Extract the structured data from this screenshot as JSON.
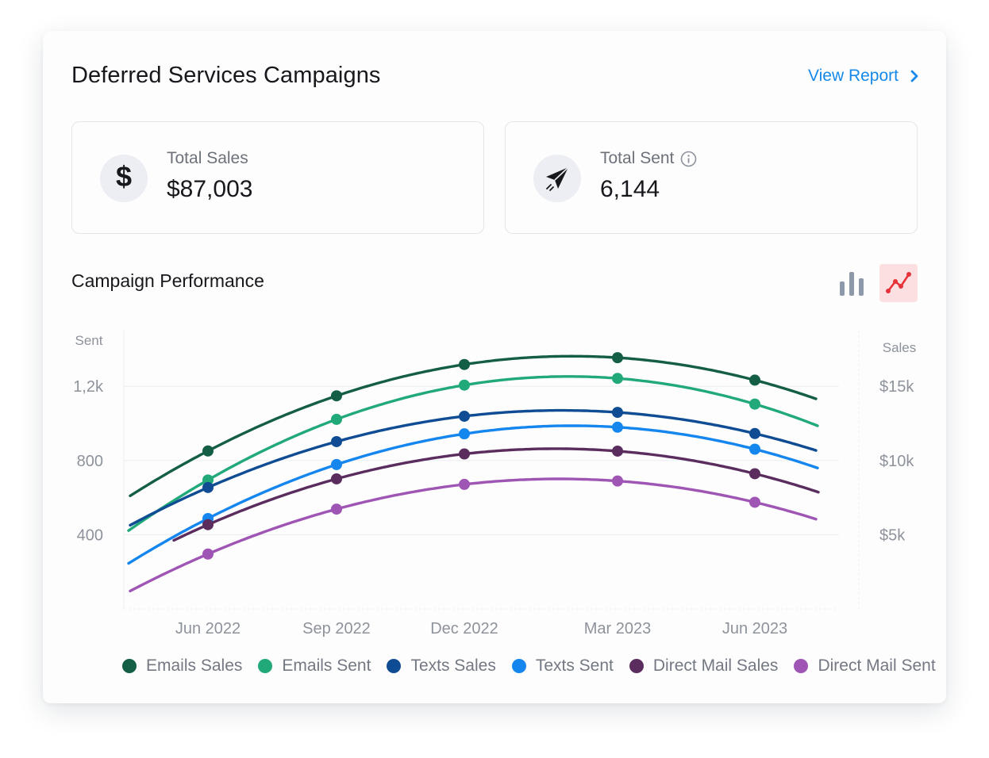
{
  "header": {
    "title": "Deferred Services Campaigns",
    "link": "View Report"
  },
  "stats": [
    {
      "label": "Total Sales",
      "value": "$87,003",
      "icon": "dollar-icon"
    },
    {
      "label": "Total Sent",
      "value": "6,144",
      "icon": "paper-plane-icon",
      "info_icon": "info-icon"
    }
  ],
  "section": {
    "title": "Campaign Performance"
  },
  "toggle": {
    "bar_icon": "bar-chart-icon",
    "line_icon": "line-chart-icon",
    "active": "line",
    "active_color": "#e8323a"
  },
  "chart_data": {
    "type": "line",
    "x_ticks": [
      "Jun 2022",
      "Sep 2022",
      "Dec 2022",
      "Mar 2023",
      "Jun 2023"
    ],
    "y_left": {
      "label": "Sent",
      "ticks": [
        "400",
        "800",
        "1,2k"
      ],
      "range": [
        0,
        1500
      ]
    },
    "y_right": {
      "label": "Sales",
      "ticks": [
        "$5k",
        "$10k",
        "$15k"
      ],
      "range": [
        0,
        18750
      ]
    },
    "grid": true,
    "legend_position": "bottom",
    "series": [
      {
        "name": "Emails Sales",
        "color": "#155e46",
        "values": [
          845,
          1160,
          1320,
          1340,
          1240
        ]
      },
      {
        "name": "Emails Sent",
        "color": "#22a979",
        "values": [
          690,
          1030,
          1210,
          1230,
          1110
        ]
      },
      {
        "name": "Texts Sales",
        "color": "#0f4c93",
        "values": [
          650,
          910,
          1040,
          1050,
          950
        ]
      },
      {
        "name": "Texts Sent",
        "color": "#1586ee",
        "values": [
          480,
          790,
          950,
          960,
          870
        ]
      },
      {
        "name": "Direct Mail Sales",
        "color": "#5a2d5e",
        "values": [
          440,
          730,
          830,
          830,
          740
        ]
      },
      {
        "name": "Direct Mail Sent",
        "color": "#9e55b3",
        "values": [
          290,
          550,
          670,
          680,
          580
        ]
      }
    ]
  }
}
